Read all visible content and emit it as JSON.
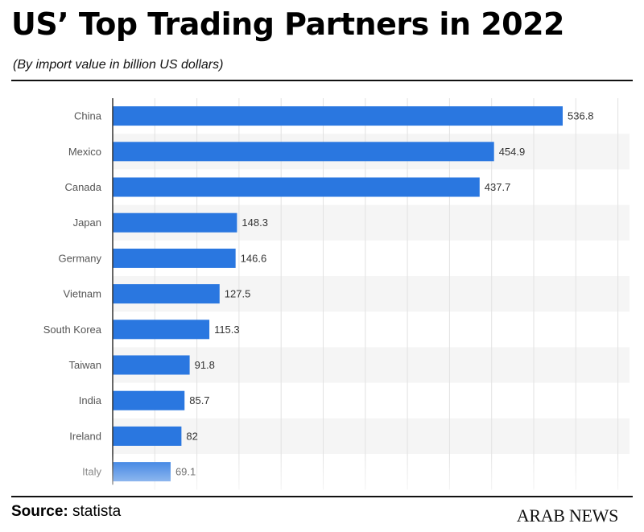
{
  "header": {
    "title": "US’ Top Trading Partners in 2022",
    "subtitle": "(By import value in billion US dollars)"
  },
  "footer": {
    "source_label": "Source:",
    "source_value": "statista",
    "brand": "ARAB NEWS"
  },
  "colors": {
    "bar": "#2a77e0",
    "band": "#f5f5f5",
    "grid": "#e2e2e2",
    "axis": "#333333"
  },
  "chart_data": {
    "type": "bar",
    "orientation": "horizontal",
    "categories": [
      "China",
      "Mexico",
      "Canada",
      "Japan",
      "Germany",
      "Vietnam",
      "South Korea",
      "Taiwan",
      "India",
      "Ireland",
      "Italy"
    ],
    "values": [
      536.8,
      454.9,
      437.7,
      148.3,
      146.6,
      127.5,
      115.3,
      91.8,
      85.7,
      82,
      69.1
    ],
    "title": "US’ Top Trading Partners in 2022",
    "subtitle": "(By import value in billion US dollars)",
    "xlim": [
      0,
      600
    ],
    "grid": true,
    "legend": "none"
  }
}
